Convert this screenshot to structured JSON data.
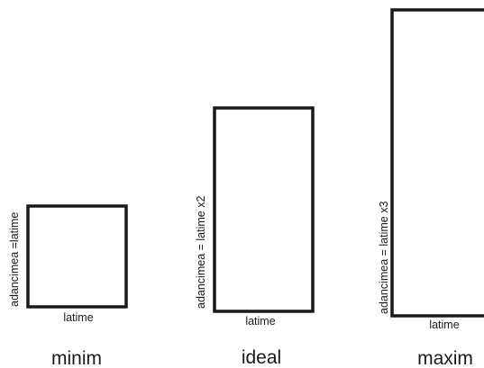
{
  "diagram": {
    "stroke_color": "#1a1a1a",
    "rectangles": [
      {
        "size_label": "minim",
        "width_label": "latime",
        "depth_label": "adancimea =latime",
        "depth_to_width_ratio": 1
      },
      {
        "size_label": "ideal",
        "width_label": "latime",
        "depth_label": "adancimea = latime x2",
        "depth_to_width_ratio": 2
      },
      {
        "size_label": "maxim",
        "width_label": "latime",
        "depth_label": "adancimea = latime x3",
        "depth_to_width_ratio": 3
      }
    ]
  }
}
